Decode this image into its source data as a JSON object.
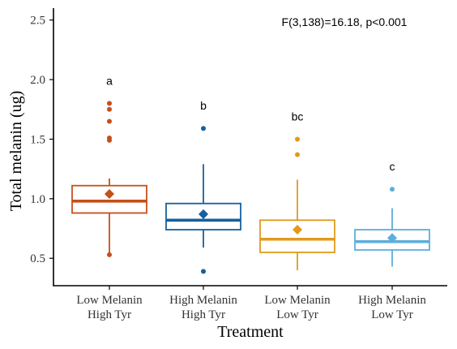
{
  "chart_data": {
    "type": "box",
    "xlabel": "Treatment",
    "ylabel": "Total melanin (ug)",
    "ylim": [
      0.27,
      2.6
    ],
    "yticks": [
      "0.5",
      "1.0",
      "1.5",
      "2.0",
      "2.5"
    ],
    "annotation": "F(3,138)=16.18, p<0.001",
    "grid": false,
    "groups": [
      {
        "label_line1": "Low Melanin",
        "label_line2": "High Tyr",
        "color": "#C4501A",
        "whisker_low": 0.53,
        "q1": 0.88,
        "median": 0.98,
        "q3": 1.11,
        "whisker_high": 1.17,
        "mean": 1.04,
        "outliers": [
          0.53,
          1.49,
          1.51,
          1.65,
          1.75,
          1.8
        ],
        "letter": "a"
      },
      {
        "label_line1": "High Melanin",
        "label_line2": "High Tyr",
        "color": "#15609E",
        "whisker_low": 0.59,
        "q1": 0.74,
        "median": 0.82,
        "q3": 0.96,
        "whisker_high": 1.29,
        "mean": 0.87,
        "outliers": [
          0.39,
          1.59
        ],
        "letter": "b"
      },
      {
        "label_line1": "Low Melanin",
        "label_line2": "Low Tyr",
        "color": "#E19A1C",
        "whisker_low": 0.4,
        "q1": 0.55,
        "median": 0.66,
        "q3": 0.82,
        "whisker_high": 1.16,
        "mean": 0.74,
        "outliers": [
          1.37,
          1.5
        ],
        "letter": "bc"
      },
      {
        "label_line1": "High Melanin",
        "label_line2": "Low Tyr",
        "color": "#5EAEDD",
        "whisker_low": 0.43,
        "q1": 0.57,
        "median": 0.64,
        "q3": 0.74,
        "whisker_high": 0.92,
        "mean": 0.67,
        "outliers": [
          1.08
        ],
        "letter": "c"
      }
    ]
  }
}
